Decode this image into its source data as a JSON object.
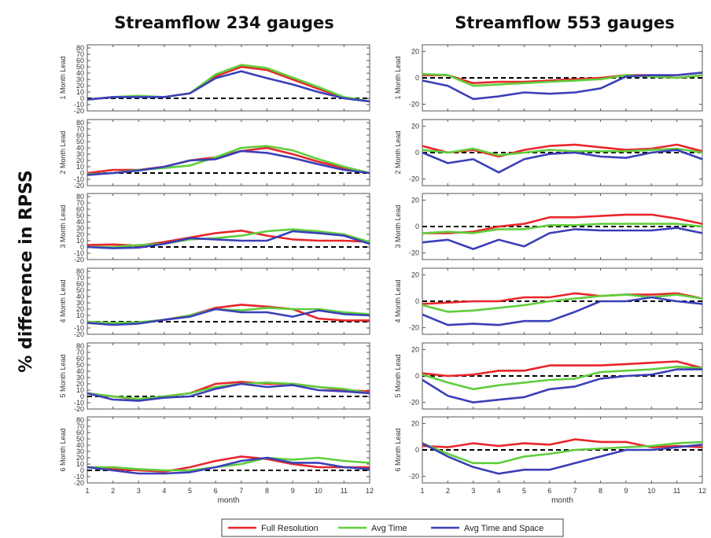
{
  "figure": {
    "y_axis_title": "% difference in RPSS",
    "legend": [
      "Full Resolution",
      "Avg Time",
      "Avg Time and Space"
    ]
  },
  "colors": {
    "Full Resolution": "#e8262b",
    "Avg Time": "#5fce3c",
    "Avg Time and Space": "#3b3fb8",
    "zero_line": "#000000"
  },
  "chart_data": [
    {
      "type": "line",
      "title": "Streamflow 234 gauges",
      "xlabel": "month",
      "x": [
        1,
        2,
        3,
        4,
        5,
        6,
        7,
        8,
        9,
        10,
        11,
        12
      ],
      "xlim": [
        1,
        12
      ],
      "ylim": [
        -20,
        85
      ],
      "yticks": [
        -20,
        -10,
        0,
        10,
        20,
        30,
        40,
        50,
        60,
        70,
        80
      ],
      "grid": false,
      "panels": [
        {
          "lead": "1 Month Lead",
          "series": [
            {
              "name": "Full Resolution",
              "values": [
                -2,
                2,
                3,
                2,
                8,
                35,
                50,
                45,
                30,
                15,
                1,
                -5
              ]
            },
            {
              "name": "Avg Time",
              "values": [
                -2,
                2,
                4,
                2,
                8,
                38,
                53,
                48,
                33,
                18,
                2,
                -5
              ]
            },
            {
              "name": "Avg Time and Space",
              "values": [
                -2,
                2,
                2,
                2,
                8,
                32,
                43,
                32,
                22,
                10,
                0,
                -5
              ]
            }
          ]
        },
        {
          "lead": "2 Month Lead",
          "series": [
            {
              "name": "Full Resolution",
              "values": [
                0,
                5,
                5,
                10,
                20,
                25,
                35,
                40,
                30,
                18,
                8,
                0
              ]
            },
            {
              "name": "Avg Time",
              "values": [
                -2,
                0,
                5,
                8,
                12,
                25,
                40,
                43,
                36,
                22,
                10,
                0
              ]
            },
            {
              "name": "Avg Time and Space",
              "values": [
                -3,
                0,
                4,
                10,
                20,
                22,
                35,
                32,
                24,
                14,
                5,
                0
              ]
            }
          ]
        },
        {
          "lead": "3 Month Lead",
          "series": [
            {
              "name": "Full Resolution",
              "values": [
                3,
                4,
                2,
                8,
                15,
                22,
                26,
                18,
                12,
                10,
                10,
                8
              ]
            },
            {
              "name": "Avg Time",
              "values": [
                0,
                0,
                3,
                5,
                12,
                14,
                18,
                25,
                28,
                25,
                20,
                8
              ]
            },
            {
              "name": "Avg Time and Space",
              "values": [
                0,
                -2,
                -1,
                5,
                14,
                12,
                10,
                10,
                25,
                22,
                18,
                5
              ]
            }
          ]
        },
        {
          "lead": "4 Month Lead",
          "series": [
            {
              "name": "Full Resolution",
              "values": [
                0,
                -3,
                -2,
                3,
                10,
                22,
                27,
                24,
                20,
                5,
                2,
                2
              ]
            },
            {
              "name": "Avg Time",
              "values": [
                0,
                -2,
                -1,
                3,
                10,
                20,
                18,
                22,
                20,
                20,
                15,
                12
              ]
            },
            {
              "name": "Avg Time and Space",
              "values": [
                -2,
                -5,
                -3,
                3,
                8,
                20,
                15,
                15,
                8,
                18,
                12,
                10
              ]
            }
          ]
        },
        {
          "lead": "5 Month Lead",
          "series": [
            {
              "name": "Full Resolution",
              "values": [
                5,
                0,
                -5,
                0,
                5,
                20,
                23,
                20,
                20,
                15,
                10,
                8
              ]
            },
            {
              "name": "Avg Time",
              "values": [
                5,
                0,
                -4,
                0,
                5,
                15,
                20,
                22,
                20,
                15,
                12,
                5
              ]
            },
            {
              "name": "Avg Time and Space",
              "values": [
                5,
                -5,
                -7,
                -2,
                0,
                12,
                20,
                15,
                18,
                10,
                8,
                5
              ]
            }
          ]
        },
        {
          "lead": "6 Month Lead",
          "series": [
            {
              "name": "Full Resolution",
              "values": [
                5,
                2,
                0,
                -2,
                5,
                15,
                22,
                18,
                10,
                5,
                5,
                5
              ]
            },
            {
              "name": "Avg Time",
              "values": [
                5,
                5,
                2,
                0,
                0,
                5,
                10,
                20,
                17,
                20,
                15,
                12
              ]
            },
            {
              "name": "Avg Time and Space",
              "values": [
                5,
                0,
                -5,
                -5,
                -3,
                5,
                15,
                20,
                12,
                12,
                5,
                2
              ]
            }
          ]
        }
      ]
    },
    {
      "type": "line",
      "title": "Streamflow 553 gauges",
      "xlabel": "month",
      "x": [
        1,
        2,
        3,
        4,
        5,
        6,
        7,
        8,
        9,
        10,
        11,
        12
      ],
      "xlim": [
        1,
        12
      ],
      "ylim": [
        -25,
        25
      ],
      "yticks": [
        -20,
        0,
        20
      ],
      "grid": false,
      "panels": [
        {
          "lead": "1 Month Lead",
          "series": [
            {
              "name": "Full Resolution",
              "values": [
                2,
                2,
                -4,
                -3,
                -3,
                -2,
                -1,
                0,
                2,
                2,
                0,
                2
              ]
            },
            {
              "name": "Avg Time",
              "values": [
                3,
                2,
                -6,
                -5,
                -4,
                -3,
                -2,
                -1,
                2,
                1,
                0,
                2
              ]
            },
            {
              "name": "Avg Time and Space",
              "values": [
                -2,
                -6,
                -16,
                -14,
                -11,
                -12,
                -11,
                -8,
                1,
                2,
                2,
                4
              ]
            }
          ]
        },
        {
          "lead": "2 Month Lead",
          "series": [
            {
              "name": "Full Resolution",
              "values": [
                5,
                0,
                2,
                -3,
                2,
                5,
                6,
                4,
                2,
                3,
                6,
                1
              ]
            },
            {
              "name": "Avg Time",
              "values": [
                2,
                0,
                3,
                -2,
                0,
                2,
                1,
                1,
                1,
                2,
                3,
                0
              ]
            },
            {
              "name": "Avg Time and Space",
              "values": [
                0,
                -8,
                -5,
                -15,
                -5,
                -1,
                0,
                -3,
                -4,
                0,
                2,
                -5
              ]
            }
          ]
        },
        {
          "lead": "3 Month Lead",
          "series": [
            {
              "name": "Full Resolution",
              "values": [
                -5,
                -5,
                -4,
                0,
                2,
                7,
                7,
                8,
                9,
                9,
                6,
                2
              ]
            },
            {
              "name": "Avg Time",
              "values": [
                -5,
                -4,
                -5,
                -2,
                -2,
                1,
                1,
                2,
                2,
                2,
                2,
                0
              ]
            },
            {
              "name": "Avg Time and Space",
              "values": [
                -12,
                -10,
                -17,
                -10,
                -15,
                -5,
                -2,
                -3,
                -3,
                -3,
                -1,
                -5
              ]
            }
          ]
        },
        {
          "lead": "4 Month Lead",
          "series": [
            {
              "name": "Full Resolution",
              "values": [
                -2,
                -1,
                0,
                0,
                3,
                3,
                6,
                4,
                5,
                5,
                6,
                2
              ]
            },
            {
              "name": "Avg Time",
              "values": [
                -3,
                -8,
                -7,
                -5,
                -3,
                0,
                2,
                4,
                5,
                3,
                5,
                2
              ]
            },
            {
              "name": "Avg Time and Space",
              "values": [
                -10,
                -18,
                -17,
                -18,
                -15,
                -15,
                -8,
                0,
                0,
                3,
                0,
                -2
              ]
            }
          ]
        },
        {
          "lead": "5 Month Lead",
          "series": [
            {
              "name": "Full Resolution",
              "values": [
                2,
                0,
                1,
                4,
                4,
                8,
                8,
                8,
                9,
                10,
                11,
                6
              ]
            },
            {
              "name": "Avg Time",
              "values": [
                1,
                -5,
                -10,
                -7,
                -5,
                -3,
                -2,
                3,
                4,
                5,
                7,
                6
              ]
            },
            {
              "name": "Avg Time and Space",
              "values": [
                -3,
                -15,
                -20,
                -18,
                -16,
                -10,
                -8,
                -2,
                0,
                1,
                5,
                5
              ]
            }
          ]
        },
        {
          "lead": "6 Month Lead",
          "series": [
            {
              "name": "Full Resolution",
              "values": [
                3,
                2,
                5,
                3,
                5,
                4,
                8,
                6,
                6,
                2,
                3,
                2
              ]
            },
            {
              "name": "Avg Time",
              "values": [
                5,
                -3,
                -10,
                -10,
                -5,
                -3,
                0,
                1,
                2,
                3,
                5,
                6
              ]
            },
            {
              "name": "Avg Time and Space",
              "values": [
                5,
                -5,
                -13,
                -18,
                -15,
                -15,
                -10,
                -5,
                0,
                0,
                2,
                4
              ]
            }
          ]
        }
      ]
    }
  ]
}
